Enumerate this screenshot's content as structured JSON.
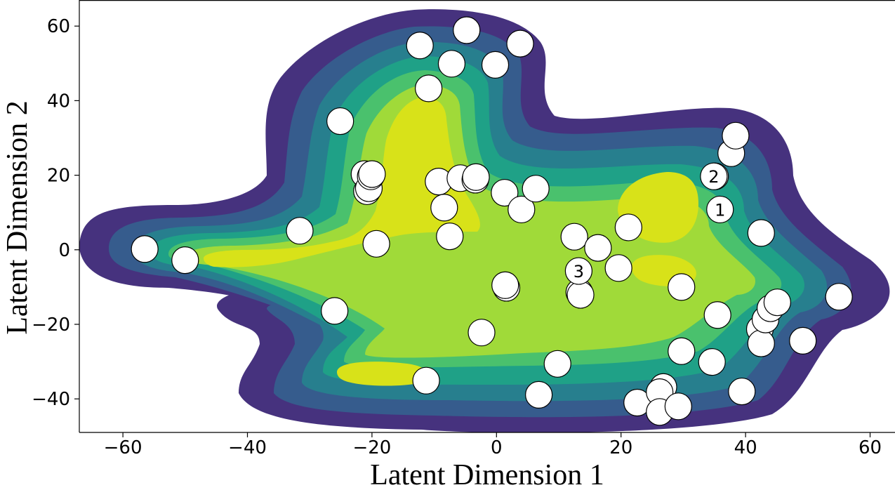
{
  "chart_data": {
    "type": "scatter",
    "title": "",
    "xlabel": "Latent Dimension 1",
    "ylabel": "Latent Dimension 2",
    "xlim": [
      -67,
      64
    ],
    "ylim": [
      -49,
      67
    ],
    "xticks": [
      -60,
      -40,
      -20,
      0,
      20,
      40,
      60
    ],
    "yticks": [
      -40,
      -20,
      0,
      20,
      40,
      60
    ],
    "xtick_labels": [
      "−60",
      "−40",
      "−20",
      "0",
      "20",
      "40",
      "60"
    ],
    "ytick_labels": [
      "−40",
      "−20",
      "0",
      "20",
      "40",
      "60"
    ],
    "grid": false,
    "legend": "none",
    "background": "density contour (viridis colormap) of the latent points",
    "colormap": [
      "#440154",
      "#46327e",
      "#365c8d",
      "#277f8e",
      "#1fa187",
      "#4ac16d",
      "#a0da39",
      "#d8e219"
    ],
    "marker_face_color": "#ffffff",
    "marker_edge_color": "#000000",
    "points": [
      {
        "x": -56.5,
        "y": 0.2
      },
      {
        "x": -50,
        "y": -2.8
      },
      {
        "x": -31.6,
        "y": 5.1
      },
      {
        "x": -26,
        "y": -16.4
      },
      {
        "x": -25.1,
        "y": 34.5
      },
      {
        "x": -21.2,
        "y": 20.3
      },
      {
        "x": -20.8,
        "y": 15.7
      },
      {
        "x": -20.5,
        "y": 16.5
      },
      {
        "x": -20.2,
        "y": 19.7
      },
      {
        "x": -20,
        "y": 20.3
      },
      {
        "x": -19.3,
        "y": 1.6
      },
      {
        "x": -12.3,
        "y": 54.8
      },
      {
        "x": -11.3,
        "y": -35.1
      },
      {
        "x": -10.9,
        "y": 43.3
      },
      {
        "x": -9.3,
        "y": 18.3
      },
      {
        "x": -8.4,
        "y": 11.3
      },
      {
        "x": -7.5,
        "y": 3.6
      },
      {
        "x": -7.2,
        "y": 49.9
      },
      {
        "x": -5.8,
        "y": 19.2
      },
      {
        "x": -4.8,
        "y": 58.9
      },
      {
        "x": -3.4,
        "y": 18.8
      },
      {
        "x": -3.3,
        "y": 19.5
      },
      {
        "x": -2.4,
        "y": -22.2
      },
      {
        "x": -0.2,
        "y": 49.6
      },
      {
        "x": 1.3,
        "y": 15.3
      },
      {
        "x": 1.6,
        "y": -10.2
      },
      {
        "x": 1.4,
        "y": -9.5
      },
      {
        "x": 3.8,
        "y": 55.3
      },
      {
        "x": 4,
        "y": 10.8
      },
      {
        "x": 6.3,
        "y": 16.4
      },
      {
        "x": 6.8,
        "y": -38.9
      },
      {
        "x": 9.8,
        "y": -30.6
      },
      {
        "x": 12.5,
        "y": 3.5
      },
      {
        "x": 13.3,
        "y": -11.4
      },
      {
        "x": 13.5,
        "y": -12.1
      },
      {
        "x": 16.3,
        "y": 0.5
      },
      {
        "x": 19.6,
        "y": -4.9
      },
      {
        "x": 21.2,
        "y": 6
      },
      {
        "x": 22.6,
        "y": -41
      },
      {
        "x": 26.8,
        "y": -36.8
      },
      {
        "x": 26.2,
        "y": -38.2
      },
      {
        "x": 26.2,
        "y": -43.5
      },
      {
        "x": 29.2,
        "y": -42
      },
      {
        "x": 29.7,
        "y": -10
      },
      {
        "x": 29.7,
        "y": -27.2
      },
      {
        "x": 34.6,
        "y": -30.1
      },
      {
        "x": 35.1,
        "y": 19.7
      },
      {
        "x": 35.5,
        "y": -17.5
      },
      {
        "x": 37.7,
        "y": 25.9
      },
      {
        "x": 38.4,
        "y": 30.6
      },
      {
        "x": 39.4,
        "y": -38
      },
      {
        "x": 42.5,
        "y": 4.5
      },
      {
        "x": 42.3,
        "y": -21.3
      },
      {
        "x": 42.5,
        "y": -25.1
      },
      {
        "x": 43.2,
        "y": -18.7
      },
      {
        "x": 44,
        "y": -15.7
      },
      {
        "x": 45.1,
        "y": -14.1
      },
      {
        "x": 49.2,
        "y": -24.4
      },
      {
        "x": 55,
        "y": -12.6
      }
    ],
    "annotations": [
      {
        "text": "1",
        "x": 35.9,
        "y": 10.8
      },
      {
        "text": "2",
        "x": 34.9,
        "y": 19.7
      },
      {
        "text": "3",
        "x": 13.2,
        "y": -5.7
      }
    ]
  }
}
